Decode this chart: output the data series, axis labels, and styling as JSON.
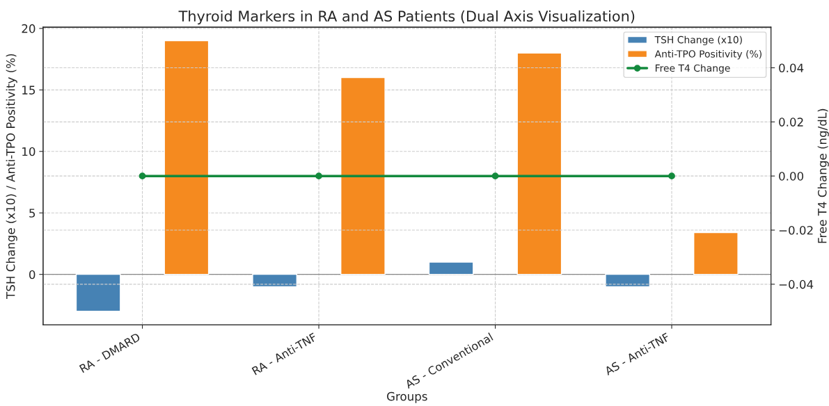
{
  "chart_data": {
    "type": "bar",
    "title": "Thyroid Markers in RA and AS Patients (Dual Axis Visualization)",
    "xlabel": "Groups",
    "ylabel": "TSH Change (x10) / Anti-TPO Positivity (%)",
    "y2label": "Free T4 Change (ng/dL)",
    "categories": [
      "RA - DMARD",
      "RA - Anti-TNF",
      "AS - Conventional",
      "AS - Anti-TNF"
    ],
    "series": [
      {
        "name": "TSH Change (x10)",
        "color": "#4682b4",
        "values": [
          -3,
          -1,
          1,
          -1
        ]
      },
      {
        "name": "Anti-TPO Positivity (%)",
        "color": "#f58a1f",
        "values": [
          19,
          16,
          18,
          3.4
        ]
      },
      {
        "name": "Free T4 Change",
        "type": "line",
        "axis": "y2",
        "color": "#138a3d",
        "marker": "circle",
        "values": [
          0,
          0,
          0,
          0
        ]
      }
    ],
    "ylim": [
      -4.1,
      20.1
    ],
    "yticks": [
      0,
      5,
      10,
      15,
      20
    ],
    "y2lim": [
      -0.055,
      0.055
    ],
    "y2ticks": [
      {
        "value": -0.04,
        "label": "−0.04"
      },
      {
        "value": -0.02,
        "label": "−0.02"
      },
      {
        "value": 0,
        "label": "0.00"
      },
      {
        "value": 0.02,
        "label": "0.02"
      },
      {
        "value": 0.04,
        "label": "0.04"
      }
    ],
    "grid": true,
    "legend": "top right"
  }
}
